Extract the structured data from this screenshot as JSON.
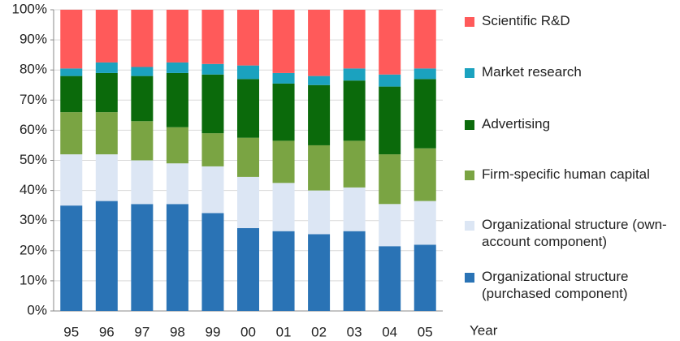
{
  "chart_data": {
    "type": "stacked_bar",
    "x_label": "Year",
    "categories": [
      "95",
      "96",
      "97",
      "98",
      "99",
      "00",
      "01",
      "02",
      "03",
      "04",
      "05"
    ],
    "series": [
      {
        "name": "Organizational structure (purchased component)",
        "color": "#2a73b5",
        "values": [
          35,
          36.5,
          35.5,
          35.5,
          32.5,
          27.5,
          26.5,
          25.5,
          26.5,
          21.5,
          22
        ]
      },
      {
        "name": "Organizational structure (own-account component)",
        "color": "#dce6f4",
        "values": [
          17,
          15.5,
          14.5,
          13.5,
          15.5,
          17,
          16,
          14.5,
          14.5,
          14,
          14.5
        ]
      },
      {
        "name": "Firm-specific human capital",
        "color": "#7aa443",
        "values": [
          14,
          14,
          13,
          12,
          11,
          13,
          14,
          15,
          15.5,
          16.5,
          17.5
        ]
      },
      {
        "name": "Advertising",
        "color": "#0b6a0b",
        "values": [
          12,
          13,
          15,
          18,
          19.5,
          19.5,
          19,
          20,
          20,
          22.5,
          23
        ]
      },
      {
        "name": "Market research",
        "color": "#1ba2bf",
        "values": [
          2.5,
          3.5,
          3,
          3.5,
          3.5,
          4.5,
          3.5,
          3,
          4,
          4,
          3.5
        ]
      },
      {
        "name": "Scientific R&D",
        "color": "#ff5a5a",
        "values": [
          19.5,
          17.5,
          19,
          17.5,
          18,
          18.5,
          21,
          22,
          19.5,
          21.5,
          19.5
        ]
      }
    ],
    "ylim": [
      0,
      100
    ],
    "yticks": [
      {
        "value": 0,
        "label": "0%"
      },
      {
        "value": 10,
        "label": "10%"
      },
      {
        "value": 20,
        "label": "20%"
      },
      {
        "value": 30,
        "label": "30%"
      },
      {
        "value": 40,
        "label": "40%"
      },
      {
        "value": 50,
        "label": "50%"
      },
      {
        "value": 60,
        "label": "60%"
      },
      {
        "value": 70,
        "label": "70%"
      },
      {
        "value": 80,
        "label": "80%"
      },
      {
        "value": 90,
        "label": "90%"
      },
      {
        "value": 100,
        "label": "100%"
      }
    ],
    "grid": true,
    "legend": "right"
  }
}
